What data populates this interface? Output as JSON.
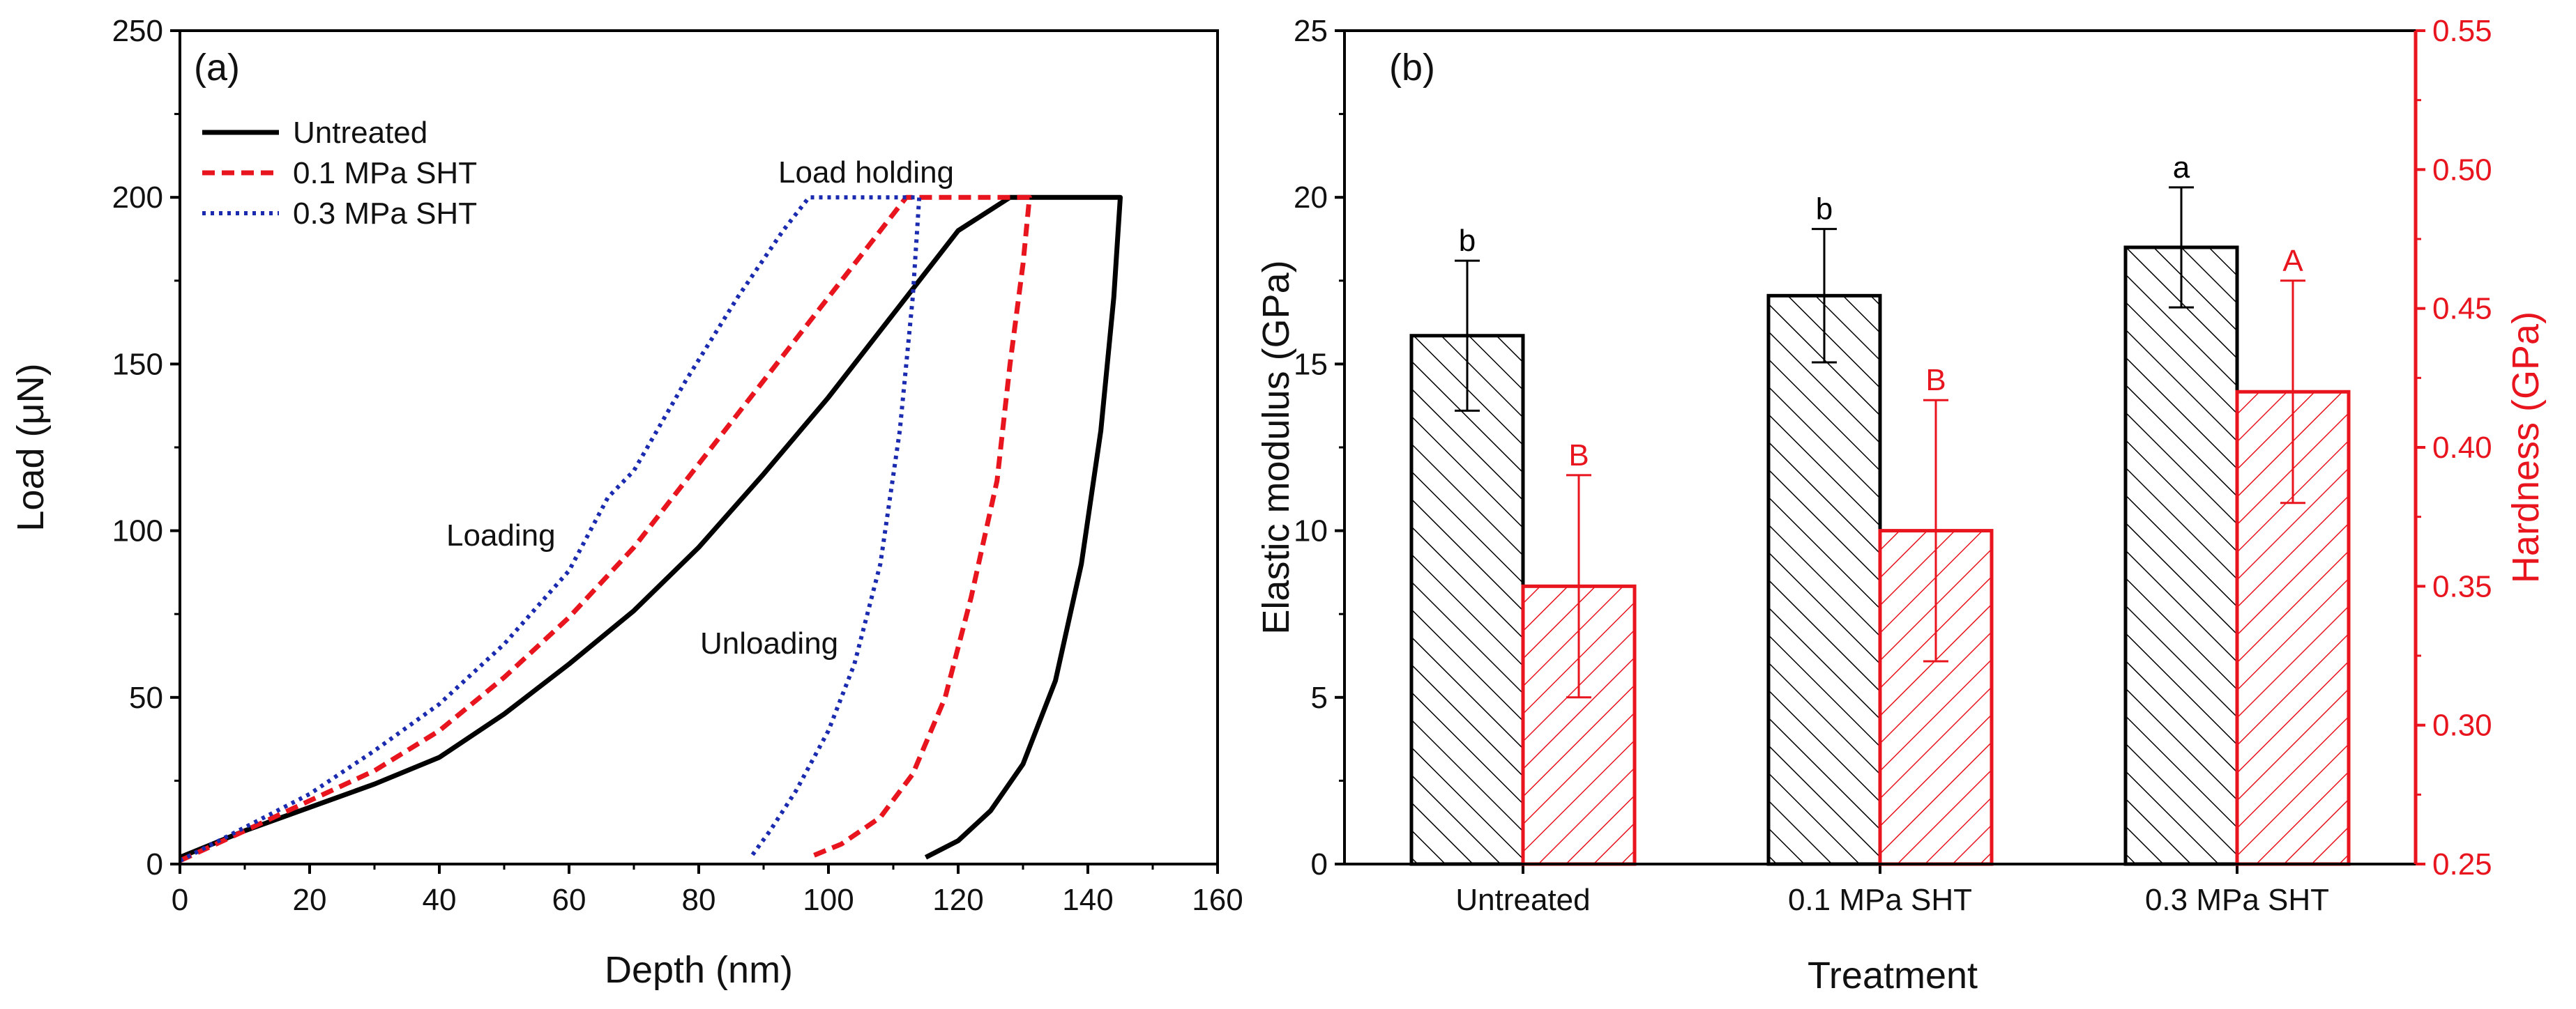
{
  "chart_data": [
    {
      "type": "line",
      "panel_label": "(a)",
      "xlabel": "Depth (nm)",
      "ylabel": "Load (μN)",
      "xlim": [
        0,
        160
      ],
      "ylim": [
        0,
        250
      ],
      "xticks": [
        0,
        20,
        40,
        60,
        80,
        100,
        120,
        140,
        160
      ],
      "yticks": [
        0,
        50,
        100,
        150,
        200,
        250
      ],
      "legend_position": "top-left",
      "annotations": [
        "Load holding",
        "Loading",
        "Unloading"
      ],
      "series": [
        {
          "name": "Untreated",
          "color": "#000000",
          "style": "solid",
          "points": [
            [
              0,
              2
            ],
            [
              5,
              6
            ],
            [
              10,
              10
            ],
            [
              20,
              17
            ],
            [
              30,
              24
            ],
            [
              40,
              32
            ],
            [
              50,
              45
            ],
            [
              60,
              60
            ],
            [
              70,
              76
            ],
            [
              80,
              95
            ],
            [
              90,
              117
            ],
            [
              100,
              140
            ],
            [
              110,
              165
            ],
            [
              120,
              190
            ],
            [
              128,
              200
            ],
            [
              145,
              200
            ],
            [
              144,
              170
            ],
            [
              142,
              130
            ],
            [
              139,
              90
            ],
            [
              135,
              55
            ],
            [
              130,
              30
            ],
            [
              125,
              16
            ],
            [
              120,
              7
            ],
            [
              115,
              2
            ]
          ]
        },
        {
          "name": "0.1 MPa SHT",
          "color": "#e8141e",
          "style": "dashed",
          "points": [
            [
              0,
              1
            ],
            [
              10,
              10
            ],
            [
              20,
              19
            ],
            [
              30,
              28
            ],
            [
              40,
              40
            ],
            [
              50,
              56
            ],
            [
              60,
              74
            ],
            [
              70,
              95
            ],
            [
              80,
              120
            ],
            [
              90,
              145
            ],
            [
              100,
              170
            ],
            [
              110,
              195
            ],
            [
              112,
              200
            ],
            [
              131,
              200
            ],
            [
              130,
              180
            ],
            [
              128,
              150
            ],
            [
              126,
              115
            ],
            [
              122,
              80
            ],
            [
              118,
              50
            ],
            [
              113,
              27
            ],
            [
              108,
              14
            ],
            [
              102,
              6
            ],
            [
              97,
              2
            ]
          ]
        },
        {
          "name": "0.3 MPa SHT",
          "color": "#1a2bb0",
          "style": "dotted",
          "points": [
            [
              0,
              1
            ],
            [
              10,
              11
            ],
            [
              20,
              21
            ],
            [
              30,
              34
            ],
            [
              40,
              48
            ],
            [
              50,
              66
            ],
            [
              60,
              88
            ],
            [
              66,
              110
            ],
            [
              70,
              118
            ],
            [
              78,
              145
            ],
            [
              86,
              170
            ],
            [
              93,
              190
            ],
            [
              97,
              200
            ],
            [
              114,
              200
            ],
            [
              113,
              170
            ],
            [
              111,
              130
            ],
            [
              108,
              90
            ],
            [
              104,
              60
            ],
            [
              100,
              40
            ],
            [
              95,
              22
            ],
            [
              91,
              10
            ],
            [
              88,
              2
            ]
          ]
        }
      ]
    },
    {
      "type": "bar",
      "panel_label": "(b)",
      "xlabel": "Treatment",
      "ylabel": "Elastic modulus (GPa)",
      "ylabel_right": "Hardness (GPa)",
      "categories": [
        "Untreated",
        "0.1 MPa SHT",
        "0.3 MPa SHT"
      ],
      "ylim": [
        0,
        25
      ],
      "ylim_right": [
        0.25,
        0.55
      ],
      "yticks": [
        0,
        5,
        10,
        15,
        20,
        25
      ],
      "yticks_right": [
        "0.25",
        "0.30",
        "0.35",
        "0.40",
        "0.45",
        "0.50",
        "0.55"
      ],
      "right_axis_color": "#e8141e",
      "series": [
        {
          "axis": "left",
          "color": "#000000",
          "values": [
            15.85,
            17.05,
            18.5
          ],
          "errors": [
            2.25,
            2.0,
            1.8
          ],
          "letters": [
            "b",
            "b",
            "a"
          ]
        },
        {
          "axis": "right",
          "color": "#e8141e",
          "values": [
            0.35,
            0.37,
            0.42
          ],
          "errors": [
            0.04,
            0.047,
            0.04
          ],
          "letters": [
            "B",
            "B",
            "A"
          ]
        }
      ]
    }
  ]
}
